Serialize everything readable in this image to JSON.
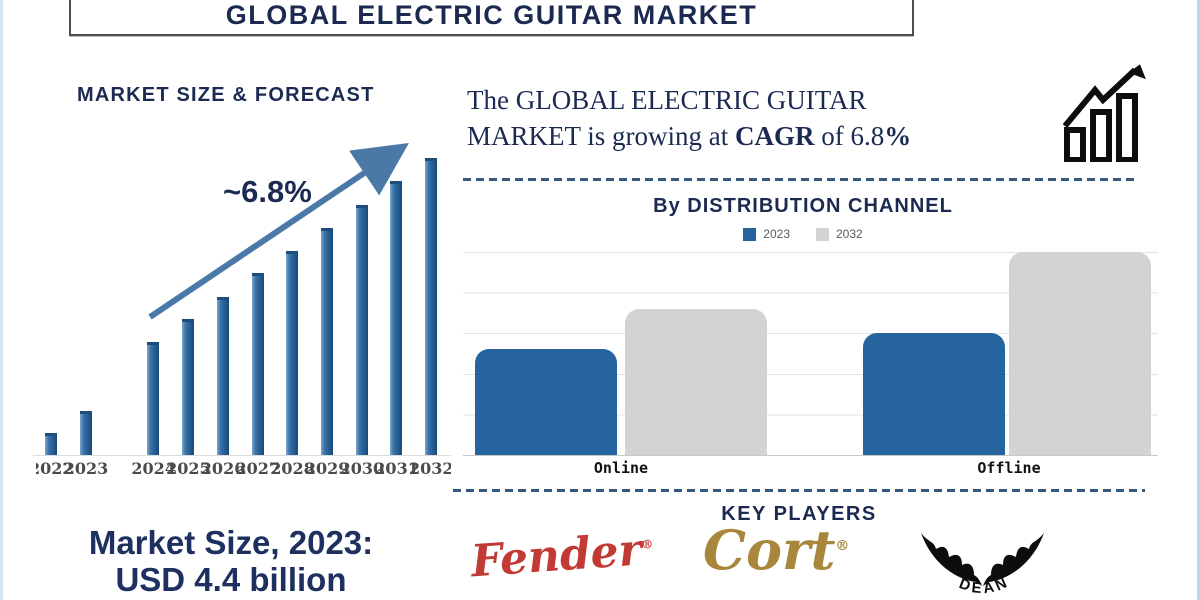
{
  "colors": {
    "navy": "#1c2a52",
    "steel_blue_arrow": "#4a79a8",
    "forecast_bar_blue": "#2d6399",
    "dist_blue": "#25649f",
    "dist_gray": "#d3d3d3",
    "fender_red": "#c23a34",
    "cort_gold": "#a8873d",
    "dash_line": "#355a7d"
  },
  "banner": {
    "title": "GLOBAL ELECTRIC GUITAR MARKET"
  },
  "forecast": {
    "title": "MARKET SIZE & FORECAST",
    "growth_label": "~6.8%"
  },
  "headline": {
    "line1": "The GLOBAL  ELECTRIC GUITAR",
    "line2_pre": "MARKET is growing at ",
    "cagr": "CAGR",
    "line2_mid": " of 6.8",
    "pct": "%"
  },
  "distribution": {
    "title": "By DISTRIBUTION CHANNEL",
    "legend": [
      {
        "label": "2023",
        "color": "#25649f"
      },
      {
        "label": "2032",
        "color": "#d3d3d3"
      }
    ],
    "categories": [
      "Online",
      "Offline"
    ]
  },
  "market_size": {
    "line1": "Market Size, 2023:",
    "line2": "USD 4.4 billion"
  },
  "key_players": {
    "title": "KEY PLAYERS",
    "brands": [
      {
        "name": "Fender",
        "reg": "®"
      },
      {
        "name": "Cort",
        "reg": "®"
      },
      {
        "name": "DEAN"
      }
    ]
  },
  "chart_data": [
    {
      "type": "bar",
      "title": "MARKET SIZE & FORECAST",
      "categories": [
        "2022",
        "2023",
        "2024",
        "2025",
        "2026",
        "2027",
        "2028",
        "2029",
        "2030",
        "2031",
        "2032"
      ],
      "values": [
        22,
        44,
        113,
        136,
        158,
        182,
        204,
        227,
        250,
        274,
        297
      ],
      "value_units": "relative bar height, axis unlabeled (stylized forecast)",
      "annotation": "~6.8% growth arrow from 2024 to 2032",
      "xlabel": "",
      "ylabel": "",
      "grid": false,
      "bar_color": "#2d6399"
    },
    {
      "type": "bar",
      "title": "By DISTRIBUTION CHANNEL",
      "categories": [
        "Online",
        "Offline"
      ],
      "series": [
        {
          "name": "2023",
          "values": [
            2.6,
            3.0
          ],
          "color": "#25649f"
        },
        {
          "name": "2032",
          "values": [
            3.6,
            5.0
          ],
          "color": "#d3d3d3"
        }
      ],
      "ylim": [
        0,
        5
      ],
      "value_units": "relative gridline units, axis unlabeled",
      "grid": true,
      "legend_position": "top"
    }
  ]
}
